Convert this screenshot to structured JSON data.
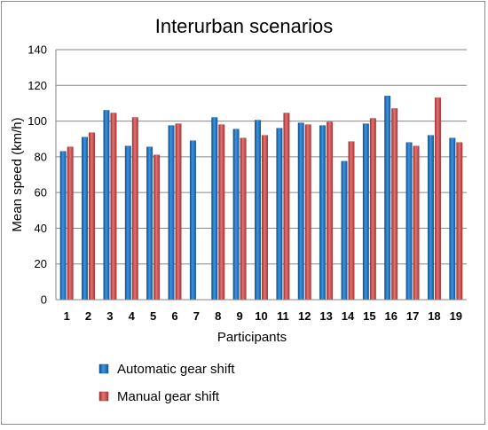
{
  "chart_data": {
    "type": "bar",
    "title": "Interurban scenarios",
    "xlabel": "Participants",
    "ylabel": "Mean speed (km/h)",
    "ylim": [
      0,
      140
    ],
    "yticks": [
      "0",
      "20",
      "40",
      "60",
      "80",
      "100",
      "120",
      "140"
    ],
    "grid": true,
    "legend_position": "bottom-left",
    "categories": [
      "1",
      "2",
      "3",
      "4",
      "5",
      "6",
      "7",
      "8",
      "9",
      "10",
      "11",
      "12",
      "13",
      "14",
      "15",
      "16",
      "17",
      "18",
      "19"
    ],
    "series": [
      {
        "name": "Automatic gear shift",
        "color": "#2e7bc4",
        "values": [
          83,
          91,
          106,
          86,
          85.5,
          97.5,
          89,
          102,
          95.5,
          100.5,
          96,
          99,
          97.5,
          77.5,
          98.5,
          114,
          88,
          92,
          90.5
        ]
      },
      {
        "name": "Manual gear shift",
        "color": "#cc4a4a",
        "values": [
          85.5,
          93.5,
          104.5,
          102,
          81,
          98.5,
          null,
          98,
          90.5,
          92,
          104.5,
          98,
          99.5,
          88.5,
          101.5,
          107,
          86,
          113,
          88
        ]
      }
    ]
  }
}
